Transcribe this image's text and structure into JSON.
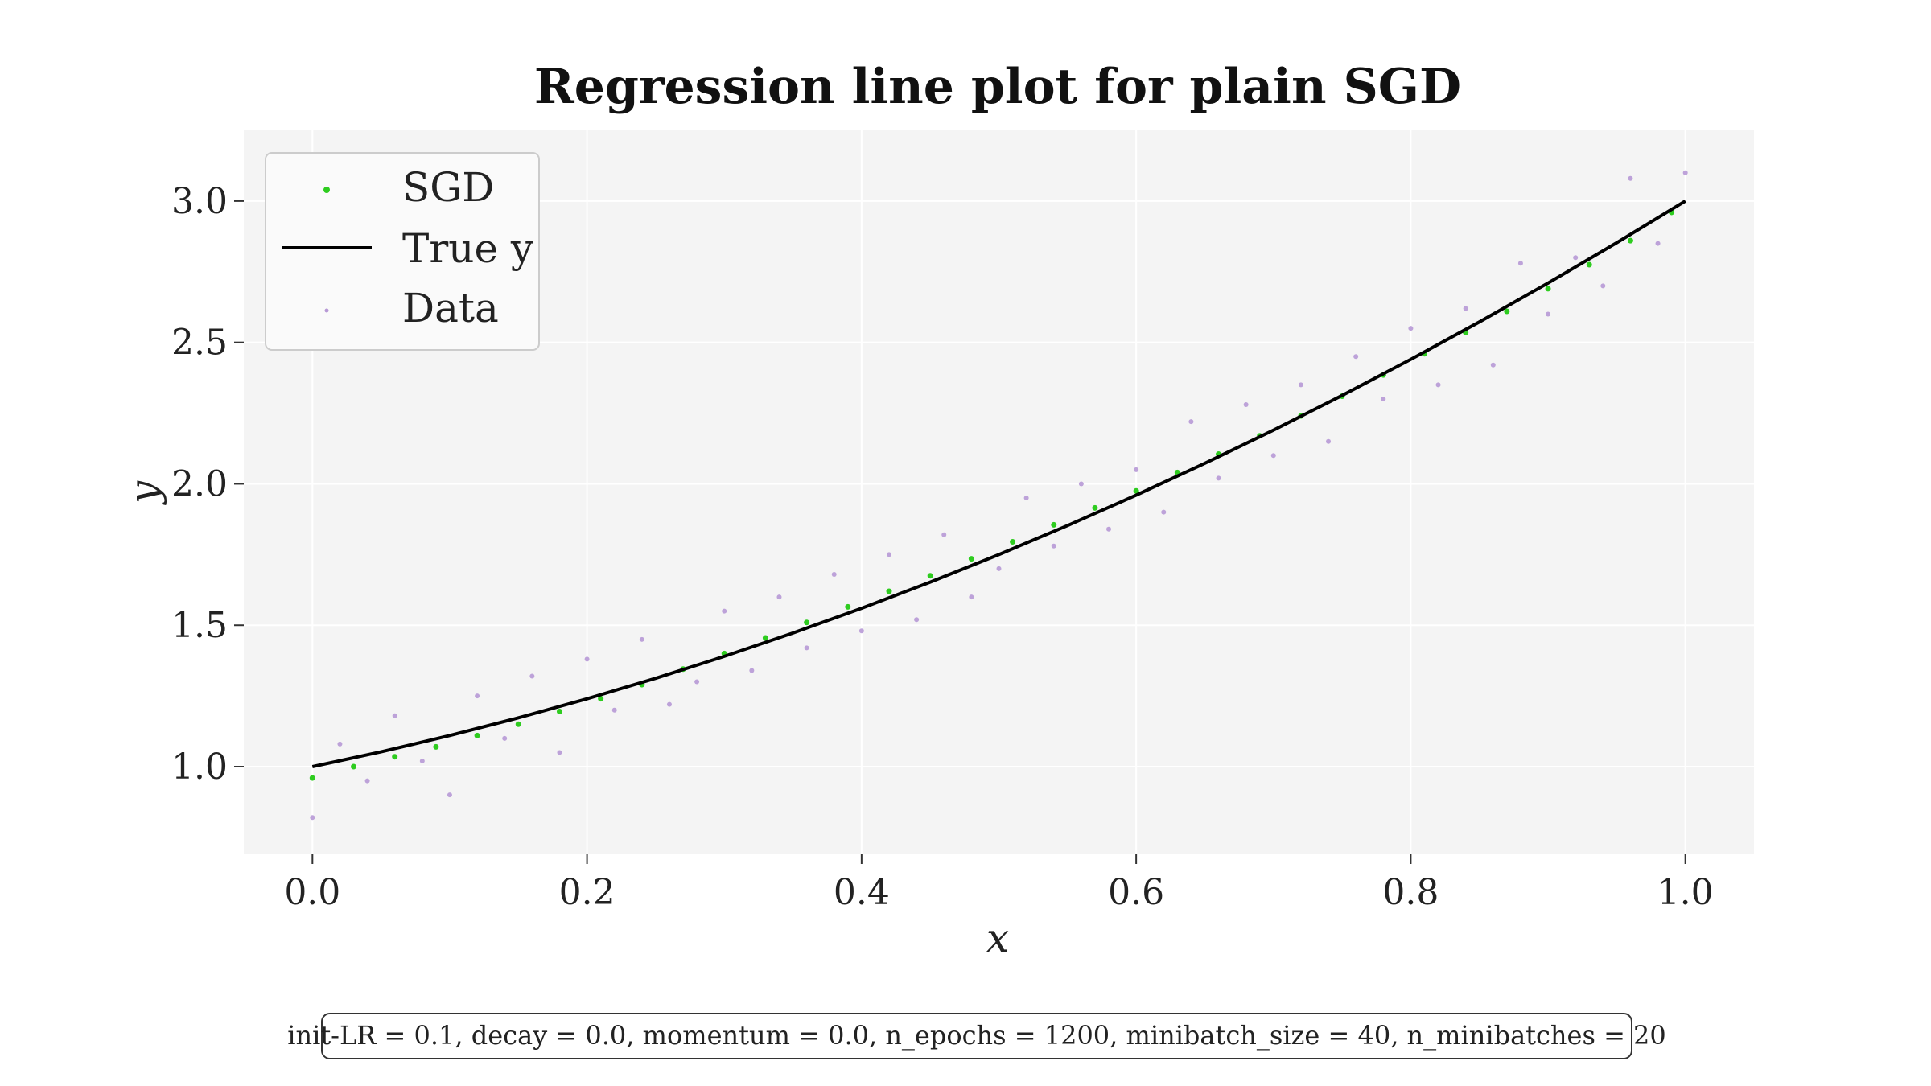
{
  "chart_data": {
    "type": "scatter",
    "title": "Regression line plot for plain SGD",
    "xlabel": "x",
    "ylabel": "y",
    "xlim": [
      -0.05,
      1.05
    ],
    "ylim": [
      0.69,
      3.25
    ],
    "xticks": [
      0.0,
      0.2,
      0.4,
      0.6,
      0.8,
      1.0
    ],
    "xtick_labels": [
      "0.0",
      "0.2",
      "0.4",
      "0.6",
      "0.8",
      "1.0"
    ],
    "yticks": [
      1.0,
      1.5,
      2.0,
      2.5,
      3.0
    ],
    "ytick_labels": [
      "1.0",
      "1.5",
      "2.0",
      "2.5",
      "3.0"
    ],
    "grid": true,
    "legend_position": "top-left",
    "true_function": "1 + x + x^2",
    "series": [
      {
        "name": "SGD",
        "kind": "scatter",
        "color": "#2ecc1f",
        "x": [
          0.0,
          0.03,
          0.06,
          0.09,
          0.12,
          0.15,
          0.18,
          0.21,
          0.24,
          0.27,
          0.3,
          0.33,
          0.36,
          0.39,
          0.42,
          0.45,
          0.48,
          0.51,
          0.54,
          0.57,
          0.6,
          0.63,
          0.66,
          0.69,
          0.72,
          0.75,
          0.78,
          0.81,
          0.84,
          0.87,
          0.9,
          0.93,
          0.96,
          0.99
        ],
        "y": [
          0.96,
          1.0,
          1.035,
          1.07,
          1.11,
          1.15,
          1.195,
          1.24,
          1.29,
          1.345,
          1.4,
          1.455,
          1.51,
          1.565,
          1.62,
          1.675,
          1.735,
          1.795,
          1.855,
          1.915,
          1.975,
          2.04,
          2.105,
          2.17,
          2.24,
          2.31,
          2.385,
          2.46,
          2.535,
          2.61,
          2.69,
          2.775,
          2.86,
          2.96
        ]
      },
      {
        "name": "True y",
        "kind": "line",
        "color": "#000000",
        "x": [
          0.0,
          0.05,
          0.1,
          0.15,
          0.2,
          0.25,
          0.3,
          0.35,
          0.4,
          0.45,
          0.5,
          0.55,
          0.6,
          0.65,
          0.7,
          0.75,
          0.8,
          0.85,
          0.9,
          0.95,
          1.0
        ],
        "y": [
          1.0,
          1.0525,
          1.11,
          1.1725,
          1.24,
          1.3125,
          1.39,
          1.4725,
          1.56,
          1.6525,
          1.75,
          1.8525,
          1.96,
          2.0725,
          2.19,
          2.3125,
          2.44,
          2.5725,
          2.71,
          2.8525,
          3.0
        ]
      },
      {
        "name": "Data",
        "kind": "scatter",
        "color": "#b799d6",
        "x": [
          0.0,
          0.02,
          0.04,
          0.06,
          0.08,
          0.1,
          0.12,
          0.14,
          0.16,
          0.18,
          0.2,
          0.22,
          0.24,
          0.26,
          0.28,
          0.3,
          0.32,
          0.34,
          0.36,
          0.38,
          0.4,
          0.42,
          0.44,
          0.46,
          0.48,
          0.5,
          0.52,
          0.54,
          0.56,
          0.58,
          0.6,
          0.62,
          0.64,
          0.66,
          0.68,
          0.7,
          0.72,
          0.74,
          0.76,
          0.78,
          0.8,
          0.82,
          0.84,
          0.86,
          0.88,
          0.9,
          0.92,
          0.94,
          0.96,
          0.98,
          1.0
        ],
        "y": [
          0.82,
          1.08,
          0.95,
          1.18,
          1.02,
          0.9,
          1.25,
          1.1,
          1.32,
          1.05,
          1.38,
          1.2,
          1.45,
          1.22,
          1.3,
          1.55,
          1.34,
          1.6,
          1.42,
          1.68,
          1.48,
          1.75,
          1.52,
          1.82,
          1.6,
          1.7,
          1.95,
          1.78,
          2.0,
          1.84,
          2.05,
          1.9,
          2.22,
          2.02,
          2.28,
          2.1,
          2.35,
          2.15,
          2.45,
          2.3,
          2.55,
          2.35,
          2.62,
          2.42,
          2.78,
          2.6,
          2.8,
          2.7,
          3.08,
          2.85,
          3.1
        ]
      }
    ],
    "legend_entries": [
      "SGD",
      "True y",
      "Data"
    ],
    "caption": "init-LR = 0.1, decay = 0.0, momentum = 0.0, n_epochs = 1200, minibatch_size = 40, n_minibatches = 20"
  }
}
